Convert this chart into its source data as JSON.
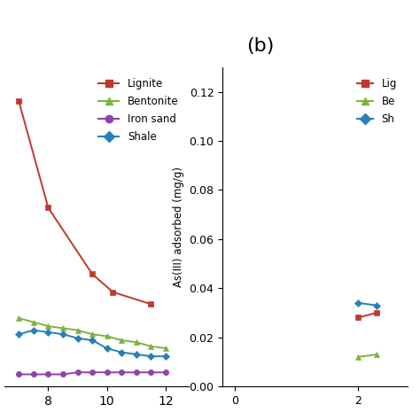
{
  "title_b": "(b)",
  "ylabel_b": "As(III) adsorbed (mg/g)",
  "left_xlim": [
    6.5,
    12.8
  ],
  "left_ylim": [
    -0.004,
    0.155
  ],
  "left_xticks": [
    8,
    10,
    12
  ],
  "right_xlim": [
    -0.2,
    2.8
  ],
  "right_ylim": [
    0,
    0.13
  ],
  "right_yticks": [
    0,
    0.02,
    0.04,
    0.06,
    0.08,
    0.1,
    0.12
  ],
  "right_xticks": [
    0,
    2
  ],
  "left_series": [
    {
      "label": "Lignite",
      "color": "#c0392b",
      "marker": "s",
      "x": [
        7.0,
        8.0,
        9.5,
        10.2,
        11.5
      ],
      "y": [
        0.138,
        0.085,
        0.052,
        0.043,
        0.037
      ]
    },
    {
      "label": "Bentonite",
      "color": "#7cb340",
      "marker": "^",
      "x": [
        7.0,
        7.5,
        8.0,
        8.5,
        9.0,
        9.5,
        10.0,
        10.5,
        11.0,
        11.5,
        12.0
      ],
      "y": [
        0.03,
        0.028,
        0.026,
        0.025,
        0.024,
        0.022,
        0.021,
        0.019,
        0.018,
        0.016,
        0.015
      ]
    },
    {
      "label": "Iron sand",
      "color": "#8e44ad",
      "marker": "o",
      "x": [
        7.0,
        7.5,
        8.0,
        8.5,
        9.0,
        9.5,
        10.0,
        10.5,
        11.0,
        11.5,
        12.0
      ],
      "y": [
        0.002,
        0.002,
        0.002,
        0.002,
        0.003,
        0.003,
        0.003,
        0.003,
        0.003,
        0.003,
        0.003
      ]
    },
    {
      "label": "Shale",
      "color": "#2980b9",
      "marker": "D",
      "x": [
        7.0,
        7.5,
        8.0,
        8.5,
        9.0,
        9.5,
        10.0,
        10.5,
        11.0,
        11.5,
        12.0
      ],
      "y": [
        0.022,
        0.024,
        0.023,
        0.022,
        0.02,
        0.019,
        0.015,
        0.013,
        0.012,
        0.011,
        0.011
      ]
    }
  ],
  "right_series": [
    {
      "label": "Lignite",
      "color": "#c0392b",
      "marker": "s",
      "x": [
        2.0,
        2.3
      ],
      "y": [
        0.028,
        0.03
      ]
    },
    {
      "label": "Bentonite",
      "color": "#7cb340",
      "marker": "^",
      "x": [
        2.0,
        2.3
      ],
      "y": [
        0.012,
        0.013
      ]
    },
    {
      "label": "Shale",
      "color": "#2980b9",
      "marker": "D",
      "x": [
        2.0,
        2.3
      ],
      "y": [
        0.034,
        0.033
      ]
    }
  ],
  "left_legend_labels": [
    "Lignite",
    "Bentonite",
    "Iron sand",
    "Shale"
  ],
  "left_legend_colors": [
    "#c0392b",
    "#7cb340",
    "#8e44ad",
    "#2980b9"
  ],
  "left_legend_markers": [
    "s",
    "^",
    "o",
    "D"
  ],
  "right_legend_labels": [
    "Lig",
    "Be",
    "Sh"
  ],
  "right_legend_colors": [
    "#c0392b",
    "#7cb340",
    "#2980b9"
  ],
  "right_legend_markers": [
    "s",
    "^",
    "D"
  ]
}
